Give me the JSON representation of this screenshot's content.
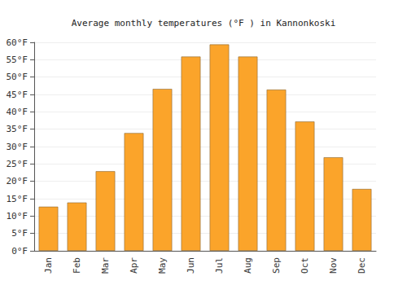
{
  "chart_data": {
    "type": "bar",
    "title": "Average monthly temperatures (°F ) in Kannonkoski",
    "categories": [
      "Jan",
      "Feb",
      "Mar",
      "Apr",
      "May",
      "Jun",
      "Jul",
      "Aug",
      "Sep",
      "Oct",
      "Nov",
      "Dec"
    ],
    "values": [
      12.7,
      13.9,
      22.9,
      33.9,
      46.6,
      55.9,
      59.4,
      55.9,
      46.4,
      37.2,
      26.9,
      17.8
    ],
    "color": "#fba42a",
    "ylim": [
      0,
      60
    ],
    "yticks": [
      {
        "value": 0,
        "label": "0°F"
      },
      {
        "value": 5,
        "label": "5°F"
      },
      {
        "value": 10,
        "label": "10°F"
      },
      {
        "value": 15,
        "label": "15°F"
      },
      {
        "value": 20,
        "label": "20°F"
      },
      {
        "value": 25,
        "label": "25°F"
      },
      {
        "value": 30,
        "label": "30°F"
      },
      {
        "value": 35,
        "label": "35°F"
      },
      {
        "value": 40,
        "label": "40°F"
      },
      {
        "value": 45,
        "label": "45°F"
      },
      {
        "value": 50,
        "label": "50°F"
      },
      {
        "value": 55,
        "label": "55°F"
      },
      {
        "value": 60,
        "label": "60°F"
      }
    ],
    "grid": true
  }
}
